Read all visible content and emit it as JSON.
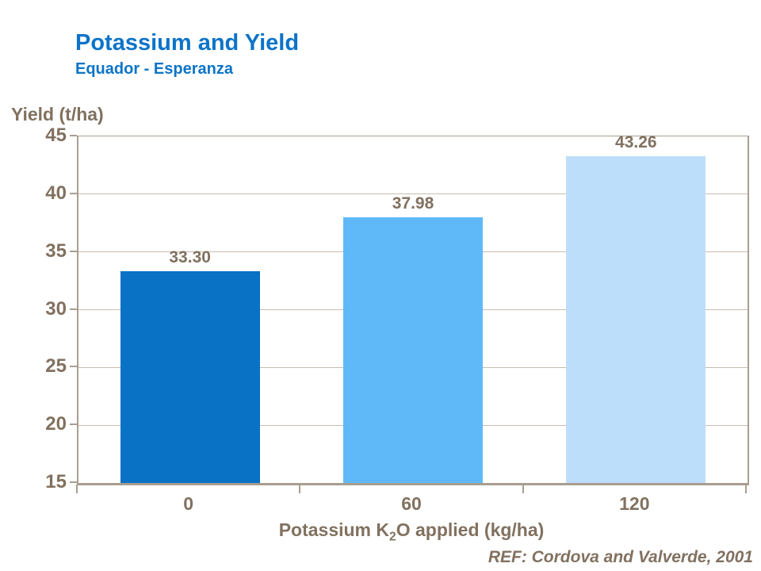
{
  "header": {
    "title": "Potassium and Yield",
    "subtitle": "Equador - Esperanza"
  },
  "chart_data": {
    "type": "bar",
    "title": "Potassium and Yield",
    "subtitle": "Equador - Esperanza",
    "categories": [
      "0",
      "60",
      "120"
    ],
    "values": [
      33.3,
      37.98,
      43.26
    ],
    "value_labels": [
      "33.30",
      "37.98",
      "43.26"
    ],
    "bar_colors": [
      "#0972C4",
      "#5FB9F9",
      "#BDDEFA"
    ],
    "ylabel": "Yield (t/ha)",
    "xlabel": "Potassium K2O applied (kg/ha)",
    "xlabel_parts": {
      "pre": "Potassium K",
      "sub": "2",
      "post": "O applied (kg/ha)"
    },
    "ylim": [
      15,
      45
    ],
    "yticks": [
      "45",
      "40",
      "35",
      "30",
      "25",
      "20",
      "15"
    ],
    "grid": true,
    "legend_position": "none"
  },
  "footer": {
    "reference": "REF: Cordova and Valverde, 2001"
  },
  "colors": {
    "background": "#FFFFFF",
    "title": "#0C74C8",
    "text": "#81715F",
    "axis": "#A89E90",
    "grid": "#C6BDB2"
  }
}
